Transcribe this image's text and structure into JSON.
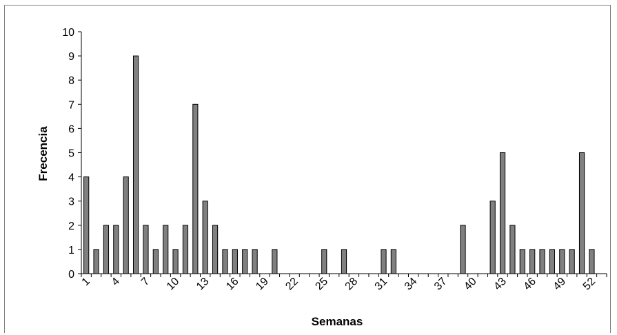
{
  "chart_data": {
    "type": "bar",
    "xlabel": "Semanas",
    "ylabel": "Frecencia",
    "ylim": [
      0,
      10
    ],
    "yticks": [
      0,
      1,
      2,
      3,
      4,
      5,
      6,
      7,
      8,
      9,
      10
    ],
    "x_tick_labels": [
      "1",
      "4",
      "7",
      "10",
      "13",
      "16",
      "19",
      "22",
      "25",
      "28",
      "31",
      "34",
      "37",
      "40",
      "43",
      "46",
      "49",
      "52"
    ],
    "categories": [
      1,
      2,
      3,
      4,
      5,
      6,
      7,
      8,
      9,
      10,
      11,
      12,
      13,
      14,
      15,
      16,
      17,
      18,
      19,
      20,
      21,
      22,
      23,
      24,
      25,
      26,
      27,
      28,
      29,
      30,
      31,
      32,
      33,
      34,
      35,
      36,
      37,
      38,
      39,
      40,
      41,
      42,
      43,
      44,
      45,
      46,
      47,
      48,
      49,
      50,
      51,
      52,
      53
    ],
    "values": [
      4,
      1,
      2,
      2,
      4,
      9,
      2,
      1,
      2,
      1,
      2,
      7,
      3,
      2,
      1,
      1,
      1,
      1,
      0,
      1,
      0,
      0,
      0,
      0,
      1,
      0,
      1,
      0,
      0,
      0,
      1,
      1,
      0,
      0,
      0,
      0,
      0,
      0,
      2,
      0,
      0,
      3,
      5,
      2,
      1,
      1,
      1,
      1,
      1,
      1,
      5,
      1,
      0
    ],
    "bar_color": "#808080",
    "grid": false,
    "legend": "none"
  }
}
